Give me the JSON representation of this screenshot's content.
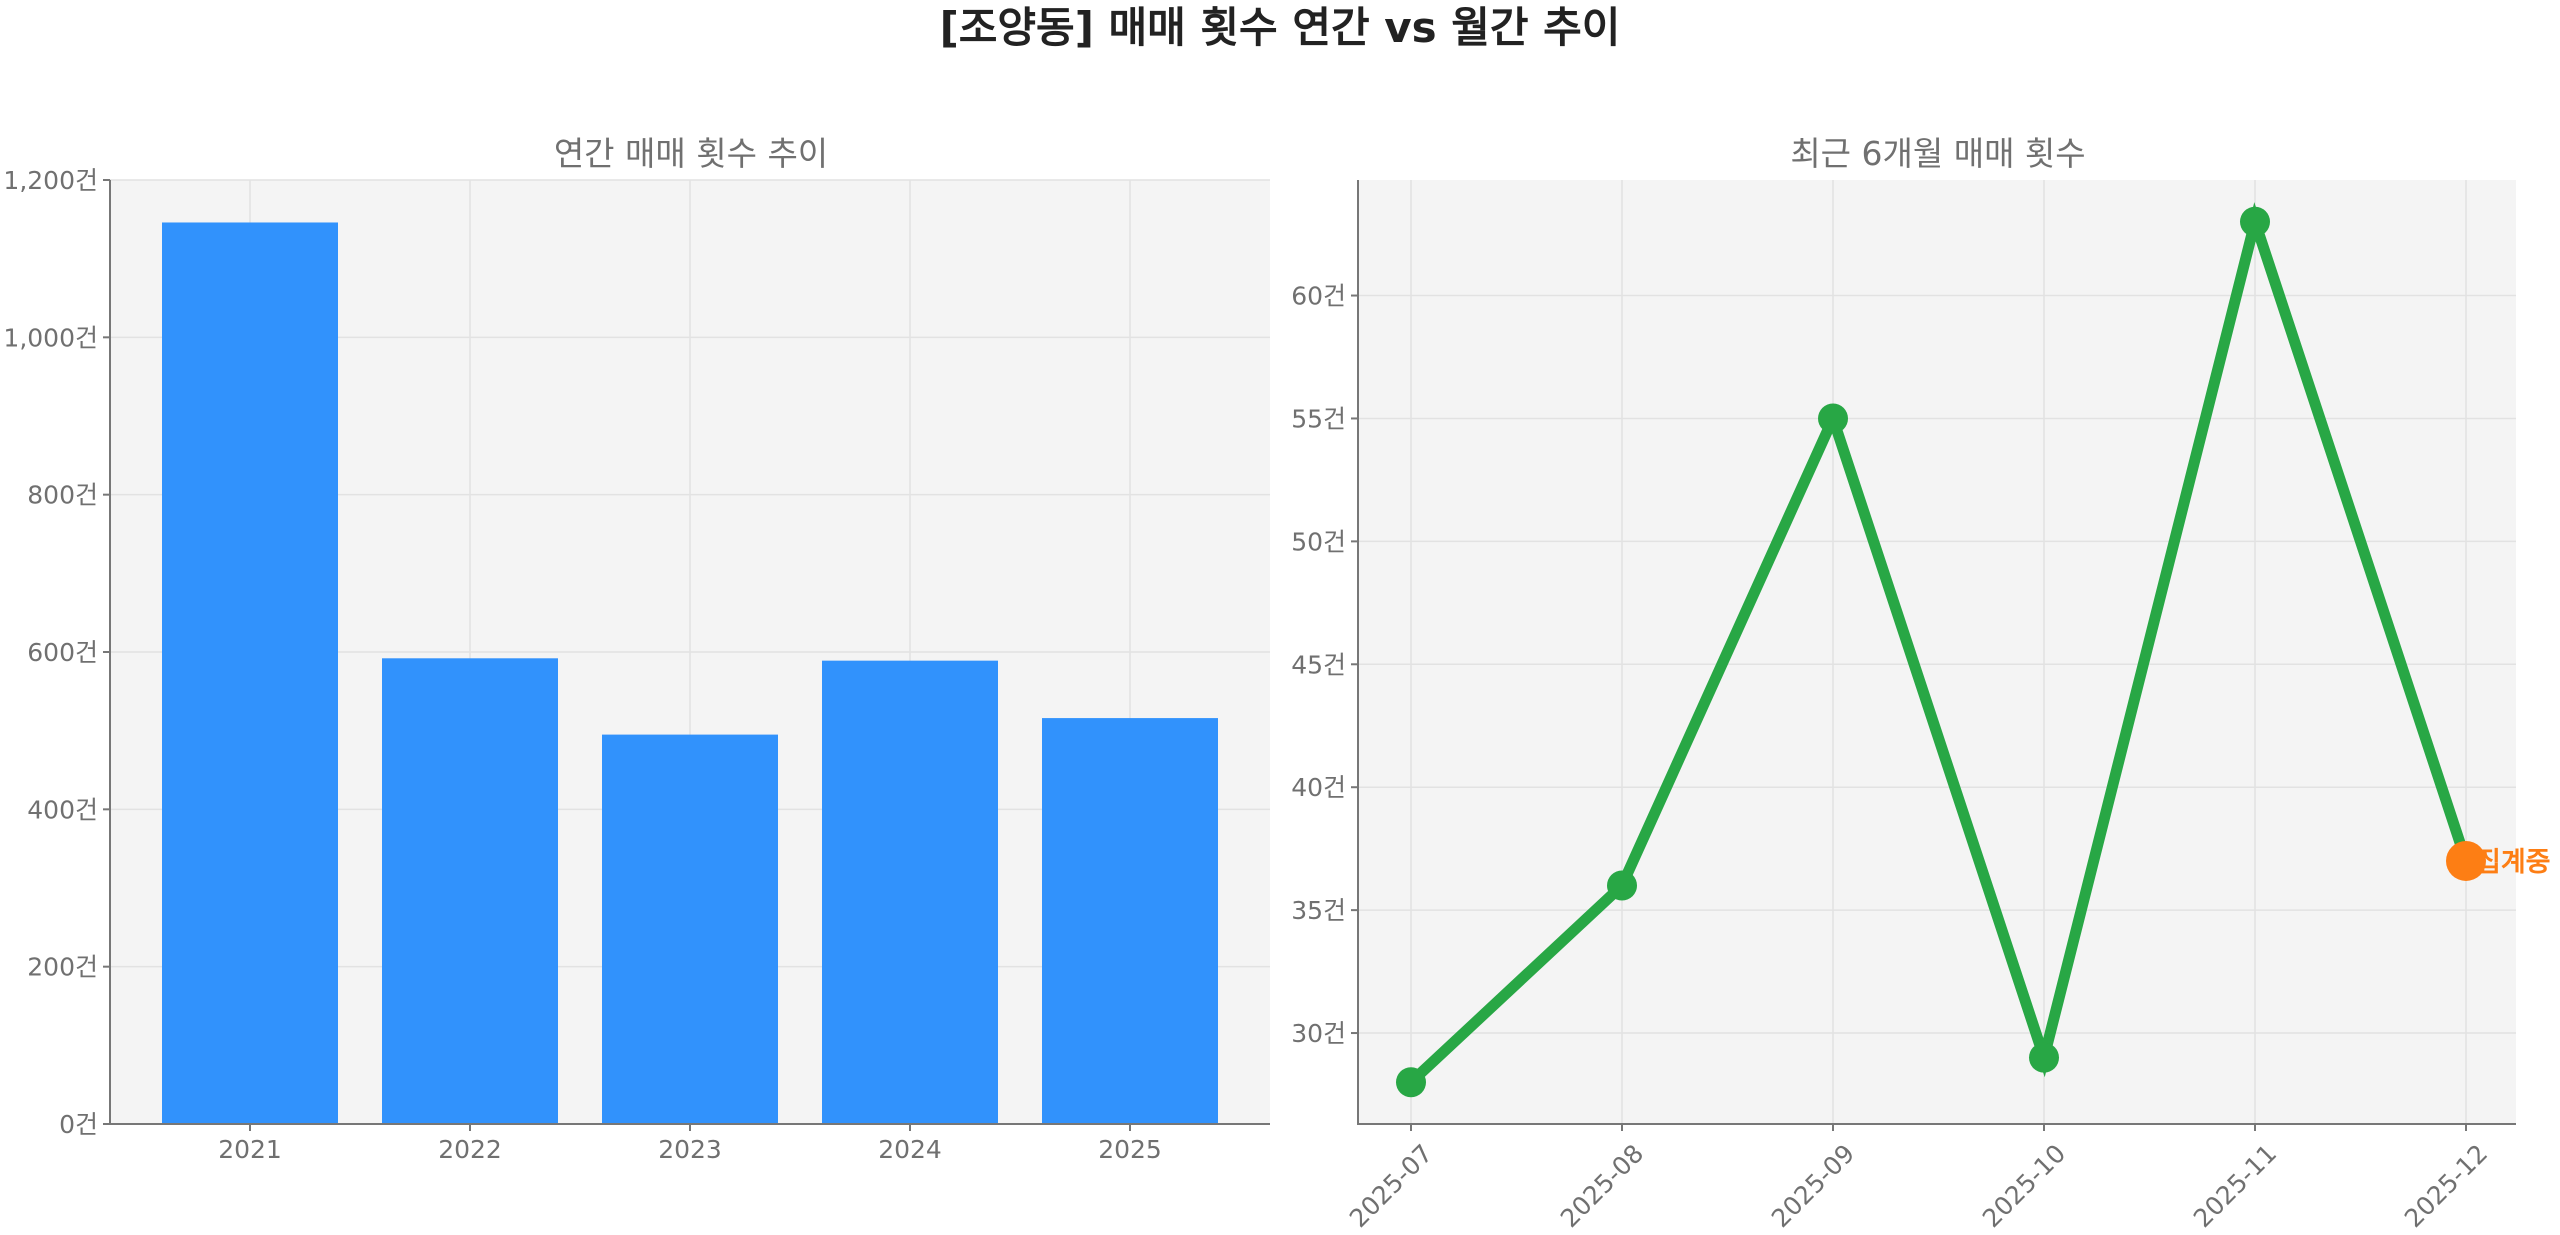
{
  "suptitle": "[조양동] 매매 횟수 연간 vs 월간 추이",
  "chart_data": [
    {
      "type": "bar",
      "title": "연간 매매 횟수 추이",
      "categories": [
        "2021",
        "2022",
        "2023",
        "2024",
        "2025"
      ],
      "values": [
        1146,
        592,
        495,
        589,
        516
      ],
      "ylim": [
        0,
        1200
      ],
      "yticks": [
        0,
        200,
        400,
        600,
        800,
        1000,
        1200
      ],
      "ytick_labels": [
        "0건",
        "200건",
        "400건",
        "600건",
        "800건",
        "1,000건",
        "1,200건"
      ],
      "bar_color": "#3192fc",
      "grid": true
    },
    {
      "type": "line",
      "title": "최근 6개월 매매 횟수",
      "x": [
        "2025-07",
        "2025-08",
        "2025-09",
        "2025-10",
        "2025-11",
        "2025-12"
      ],
      "values": [
        28,
        36,
        55,
        29,
        63,
        37
      ],
      "ylim": [
        26.3,
        64.7
      ],
      "yticks": [
        30,
        35,
        40,
        45,
        50,
        55,
        60
      ],
      "ytick_labels": [
        "30건",
        "35건",
        "40건",
        "45건",
        "50건",
        "55건",
        "60건"
      ],
      "line_color": "#28a745",
      "highlight": {
        "index": 5,
        "label": "집계중",
        "color": "#fd7e14"
      },
      "grid": true
    }
  ]
}
